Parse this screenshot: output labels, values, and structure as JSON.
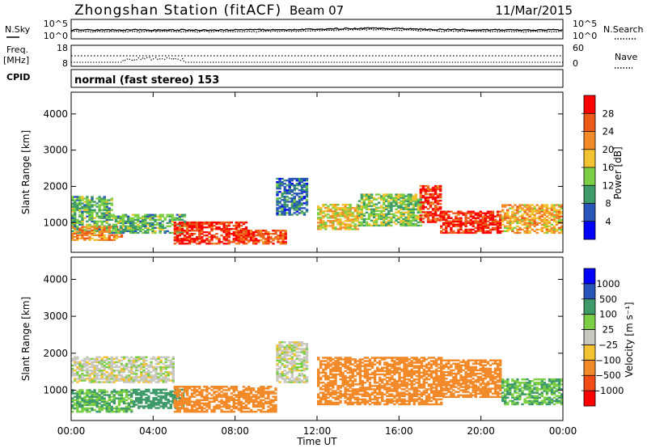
{
  "header": {
    "station": "Zhongshan Station (fitACF)",
    "beam": "Beam 07",
    "date": "11/Mar/2015"
  },
  "noise_panel": {
    "left_label": "N.Sky",
    "left_ticks": [
      "10^5",
      "10^0"
    ],
    "right_label": "N.Search",
    "right_ticks": [
      "10^5",
      "10^0"
    ]
  },
  "freq_panel": {
    "left_label_1": "Freq.",
    "left_label_2": "[MHz]",
    "left_ticks": [
      "18",
      "8"
    ],
    "right_label": "Nave",
    "right_ticks": [
      "60",
      "0"
    ]
  },
  "cpid": {
    "label": "CPID",
    "program": "normal (fast stereo) 153"
  },
  "colors": {
    "power_scale": [
      "#0000ff",
      "#2a55b8",
      "#3f9a6a",
      "#7ccf45",
      "#f2c230",
      "#f28a2a",
      "#ee5a1a",
      "#ff0000"
    ],
    "velocity_scale": [
      "#ff0000",
      "#f24d18",
      "#f28a2a",
      "#f2c230",
      "#c8c8c0",
      "#7ccf45",
      "#3f9a6a",
      "#2a55b8",
      "#0000ff"
    ]
  },
  "chart_data": [
    {
      "type": "heatmap",
      "title": "Power",
      "ylabel": "Slant Range [km]",
      "yticks": [
        "1000",
        "2000",
        "3000",
        "4000"
      ],
      "ylim": [
        180,
        4600
      ],
      "colorbar_label": "Power [dB]",
      "colorbar_ticks": [
        "4",
        "8",
        "12",
        "16",
        "20",
        "24",
        "28"
      ],
      "colorbar_range": [
        0,
        32
      ],
      "regions": [
        {
          "x": [
            0,
            2
          ],
          "y": [
            700,
            1700
          ],
          "value": 12
        },
        {
          "x": [
            0,
            2.5
          ],
          "y": [
            500,
            900
          ],
          "value": 22
        },
        {
          "x": [
            2,
            5.5
          ],
          "y": [
            700,
            1200
          ],
          "value": 12
        },
        {
          "x": [
            5,
            8.5
          ],
          "y": [
            400,
            1000
          ],
          "value": 28
        },
        {
          "x": [
            8,
            10.5
          ],
          "y": [
            400,
            800
          ],
          "value": 26
        },
        {
          "x": [
            10,
            11.5
          ],
          "y": [
            1200,
            2200
          ],
          "value": 8
        },
        {
          "x": [
            12,
            14
          ],
          "y": [
            800,
            1500
          ],
          "value": 18
        },
        {
          "x": [
            14,
            17
          ],
          "y": [
            900,
            1800
          ],
          "value": 14
        },
        {
          "x": [
            17,
            18
          ],
          "y": [
            1000,
            2000
          ],
          "value": 28
        },
        {
          "x": [
            18,
            21
          ],
          "y": [
            700,
            1300
          ],
          "value": 28
        },
        {
          "x": [
            21,
            24
          ],
          "y": [
            700,
            1500
          ],
          "value": 20
        }
      ]
    },
    {
      "type": "heatmap",
      "title": "Velocity",
      "ylabel": "Slant Range [km]",
      "xlabel": "Time UT",
      "xticks": [
        "00:00",
        "04:00",
        "08:00",
        "12:00",
        "16:00",
        "20:00",
        "00:00"
      ],
      "xlim": [
        0,
        24
      ],
      "yticks": [
        "1000",
        "2000",
        "3000",
        "4000"
      ],
      "ylim": [
        180,
        4600
      ],
      "colorbar_label": "Velocity [m s⁻¹]",
      "colorbar_ticks": [
        "1000",
        "500",
        "100",
        "25",
        "−25",
        "−100",
        "−500",
        "−1000"
      ],
      "regions": [
        {
          "x": [
            0,
            3
          ],
          "y": [
            400,
            1000
          ],
          "value": 100
        },
        {
          "x": [
            0,
            5
          ],
          "y": [
            1200,
            1900
          ],
          "value": 0
        },
        {
          "x": [
            3,
            5.5
          ],
          "y": [
            500,
            1000
          ],
          "value": 200
        },
        {
          "x": [
            5,
            10
          ],
          "y": [
            400,
            1100
          ],
          "value": -200
        },
        {
          "x": [
            10,
            11.5
          ],
          "y": [
            1200,
            2300
          ],
          "value": 0
        },
        {
          "x": [
            12,
            18
          ],
          "y": [
            600,
            1900
          ],
          "value": -200
        },
        {
          "x": [
            18,
            21
          ],
          "y": [
            800,
            1800
          ],
          "value": -200
        },
        {
          "x": [
            21,
            24
          ],
          "y": [
            600,
            1300
          ],
          "value": 100
        }
      ]
    }
  ]
}
